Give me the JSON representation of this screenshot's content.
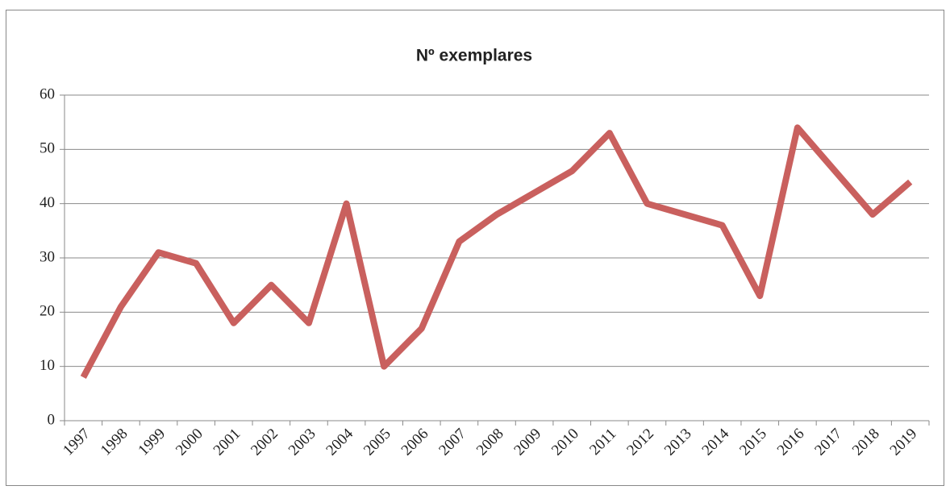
{
  "chart_data": {
    "type": "line",
    "title": "Nº exemplares",
    "categories": [
      "1997",
      "1998",
      "1999",
      "2000",
      "2001",
      "2002",
      "2003",
      "2004",
      "2005",
      "2006",
      "2007",
      "2008",
      "2009",
      "2010",
      "2011",
      "2012",
      "2013",
      "2014",
      "2015",
      "2016",
      "2017",
      "2018",
      "2019"
    ],
    "series": [
      {
        "color": "#c9605e",
        "values": [
          8,
          21,
          31,
          29,
          18,
          25,
          18,
          40,
          10,
          17,
          33,
          38,
          42,
          46,
          53,
          40,
          38,
          36,
          23,
          54,
          46,
          38,
          44
        ]
      }
    ],
    "ylim": [
      0,
      60
    ],
    "yticks": [
      0,
      10,
      20,
      30,
      40,
      50,
      60
    ],
    "grid": true
  }
}
